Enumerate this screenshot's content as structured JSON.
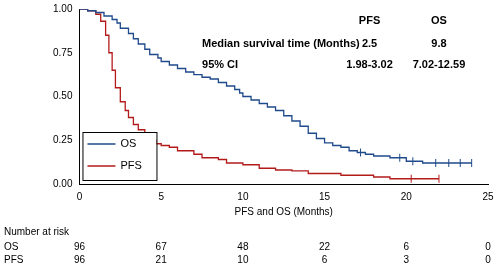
{
  "chart_data": {
    "type": "step",
    "x_label": "PFS and OS (Months)",
    "xlim": [
      0,
      25
    ],
    "xticks": [
      0,
      5,
      10,
      15,
      20,
      25
    ],
    "ylim": [
      0,
      1
    ],
    "yticks": [
      {
        "value": 0,
        "label": "0.00"
      },
      {
        "value": 0.25,
        "label": "0.25"
      },
      {
        "value": 0.5,
        "label": "0.50"
      },
      {
        "value": 0.75,
        "label": "0.75"
      },
      {
        "value": 1,
        "label": "1.00"
      }
    ],
    "grid": false,
    "legend": "lower left",
    "series": [
      {
        "name": "OS",
        "color": "#1f4a8c",
        "x": [
          0,
          0.5,
          1,
          1.5,
          2,
          2.3,
          2.5,
          3,
          3.3,
          3.6,
          4,
          4.3,
          4.8,
          5,
          5.5,
          6,
          6.5,
          7,
          7.5,
          8,
          8.5,
          9,
          9.5,
          9.8,
          10,
          10.5,
          11,
          11.5,
          12,
          12.5,
          13,
          13.5,
          14,
          14.5,
          15,
          15.5,
          16,
          16.5,
          17,
          17.5,
          18,
          19,
          20,
          21,
          24
        ],
        "values": [
          1,
          0.99,
          0.98,
          0.96,
          0.94,
          0.92,
          0.89,
          0.86,
          0.83,
          0.8,
          0.77,
          0.74,
          0.72,
          0.7,
          0.68,
          0.66,
          0.64,
          0.625,
          0.61,
          0.6,
          0.58,
          0.56,
          0.54,
          0.52,
          0.5,
          0.48,
          0.46,
          0.44,
          0.42,
          0.39,
          0.36,
          0.33,
          0.29,
          0.26,
          0.235,
          0.22,
          0.21,
          0.19,
          0.18,
          0.17,
          0.16,
          0.15,
          0.13,
          0.12,
          0.12
        ],
        "censored": {
          "x": [
            17.2,
            19.6,
            20.4,
            21.8,
            22.6,
            23.3,
            24
          ],
          "values": [
            0.18,
            0.15,
            0.13,
            0.12,
            0.12,
            0.12,
            0.12
          ]
        }
      },
      {
        "name": "PFS",
        "color": "#b31b1b",
        "x": [
          0,
          0.5,
          1,
          1.3,
          1.6,
          1.8,
          2,
          2.2,
          2.5,
          2.8,
          3,
          3.3,
          3.6,
          4,
          4.3,
          4.7,
          5,
          5.5,
          6,
          7,
          7.5,
          8.5,
          9,
          10,
          11,
          12,
          13,
          14,
          16,
          18,
          19,
          22
        ],
        "values": [
          1,
          0.99,
          0.97,
          0.93,
          0.85,
          0.75,
          0.65,
          0.55,
          0.47,
          0.42,
          0.38,
          0.34,
          0.31,
          0.28,
          0.25,
          0.23,
          0.22,
          0.21,
          0.19,
          0.17,
          0.15,
          0.14,
          0.12,
          0.11,
          0.09,
          0.08,
          0.075,
          0.06,
          0.05,
          0.04,
          0.03,
          0.03
        ],
        "censored": {
          "x": [
            20.3,
            22
          ],
          "values": [
            0.03,
            0.03
          ]
        }
      }
    ],
    "median_table": {
      "columns": [
        "PFS",
        "OS"
      ],
      "rows": [
        {
          "label": "Median survival time (Months)",
          "values": [
            2.5,
            9.8
          ]
        },
        {
          "label": "95% CI",
          "values": [
            "1.98-3.02",
            "7.02-12.59"
          ]
        }
      ]
    },
    "number_at_risk": {
      "title": "Number at risk",
      "x": [
        0,
        5,
        10,
        15,
        20,
        25
      ],
      "rows": [
        {
          "name": "OS",
          "values": [
            96,
            67,
            48,
            22,
            6,
            0
          ]
        },
        {
          "name": "PFS",
          "values": [
            96,
            21,
            10,
            6,
            3,
            0
          ]
        }
      ]
    }
  }
}
